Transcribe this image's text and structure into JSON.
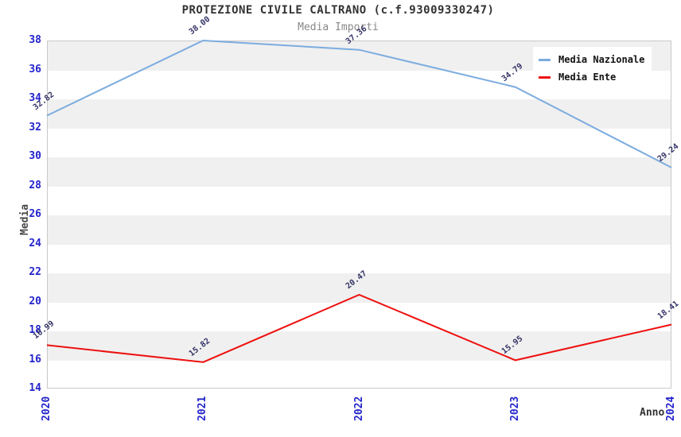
{
  "page": {
    "title": "PROTEZIONE CIVILE CALTRANO (c.f.93009330247)",
    "subtitle": "Media Importi"
  },
  "chart_data": {
    "type": "line",
    "title": "PROTEZIONE CIVILE CALTRANO (c.f.93009330247)",
    "subtitle": "Media Importi",
    "xlabel": "Anno",
    "ylabel": "Media",
    "x": [
      "2020",
      "2021",
      "2022",
      "2023",
      "2024"
    ],
    "series": [
      {
        "name": "Media Nazionale",
        "color": "#7cacdf",
        "values": [
          32.82,
          38.0,
          37.36,
          34.79,
          29.24
        ]
      },
      {
        "name": "Media Ente",
        "color": "#ee1111",
        "values": [
          16.99,
          15.82,
          20.47,
          15.95,
          18.41
        ]
      }
    ],
    "ylim": [
      14,
      38
    ],
    "ytick_step": 2,
    "grid": "horizontal-alternating-bands",
    "band_color": "#f0f0f0",
    "plot_border_color": "#c9c9c9",
    "tick_label_color": "#2323cc",
    "point_label_color": "#333366",
    "legend_position": "top-right",
    "point_label_decimals": 2
  }
}
